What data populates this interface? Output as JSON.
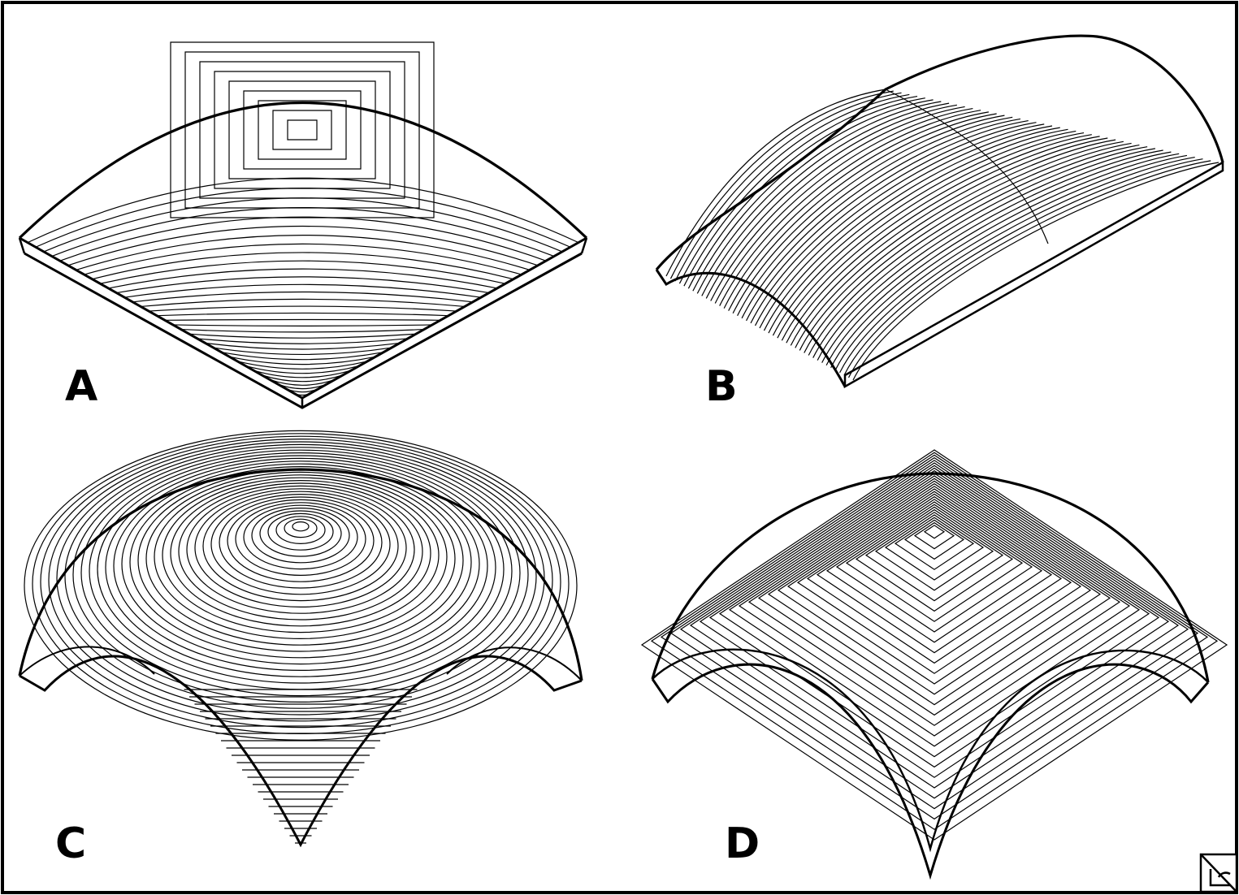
{
  "figure": {
    "panels": [
      {
        "id": "A",
        "label": "A",
        "shape": "sail-vault-square-courses"
      },
      {
        "id": "B",
        "label": "B",
        "shape": "barrel-vault-with-cloister-end"
      },
      {
        "id": "C",
        "label": "C",
        "shape": "spherical-dome-on-pendentives"
      },
      {
        "id": "D",
        "label": "D",
        "shape": "cloister-vault-square-courses"
      }
    ],
    "logo": {
      "icon": "corner-logo-icon"
    },
    "colors": {
      "stroke": "#000000",
      "background": "#ffffff"
    }
  }
}
